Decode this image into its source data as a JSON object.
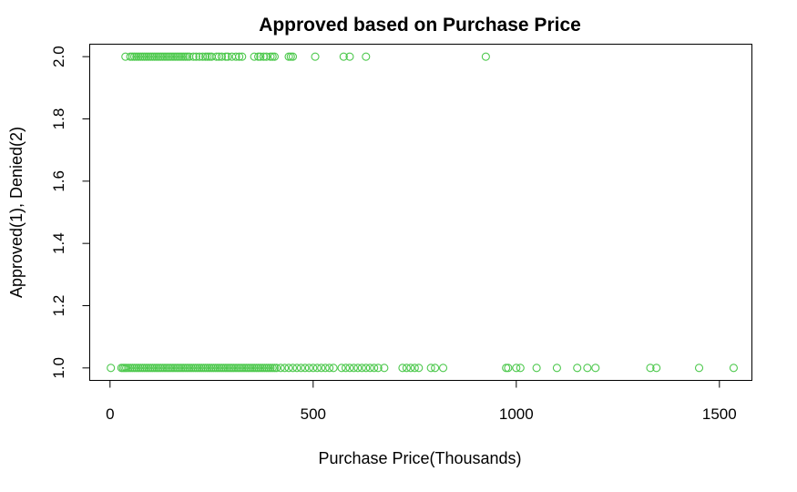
{
  "chart_data": {
    "type": "scatter",
    "title": "Approved based on Purchase Price",
    "xlabel": "Purchase Price(Thousands)",
    "ylabel": "Approved(1), Denied(2)",
    "xlim": [
      -50,
      1580
    ],
    "ylim": [
      0.96,
      2.04
    ],
    "x_ticks": [
      0,
      500,
      1000,
      1500
    ],
    "x_tick_labels": [
      "0",
      "500",
      "1000",
      "1500"
    ],
    "y_ticks": [
      1.0,
      1.2,
      1.4,
      1.6,
      1.8,
      2.0
    ],
    "y_tick_labels": [
      "1.0",
      "1.2",
      "1.4",
      "1.6",
      "1.8",
      "2.0"
    ],
    "grid": false,
    "point_color": "#4cc84c",
    "marker": "open-circle",
    "series": [
      {
        "values": [
          {
            "x": 2,
            "y": 1
          },
          {
            "x": 28,
            "y": 1
          },
          {
            "x": 32,
            "y": 1
          },
          {
            "x": 36,
            "y": 1
          },
          {
            "x": 40,
            "y": 1
          },
          {
            "x": 45,
            "y": 1
          },
          {
            "x": 50,
            "y": 1
          },
          {
            "x": 55,
            "y": 1
          },
          {
            "x": 60,
            "y": 1
          },
          {
            "x": 65,
            "y": 1
          },
          {
            "x": 70,
            "y": 1
          },
          {
            "x": 75,
            "y": 1
          },
          {
            "x": 80,
            "y": 1
          },
          {
            "x": 85,
            "y": 1
          },
          {
            "x": 90,
            "y": 1
          },
          {
            "x": 95,
            "y": 1
          },
          {
            "x": 100,
            "y": 1
          },
          {
            "x": 105,
            "y": 1
          },
          {
            "x": 110,
            "y": 1
          },
          {
            "x": 115,
            "y": 1
          },
          {
            "x": 120,
            "y": 1
          },
          {
            "x": 125,
            "y": 1
          },
          {
            "x": 130,
            "y": 1
          },
          {
            "x": 135,
            "y": 1
          },
          {
            "x": 140,
            "y": 1
          },
          {
            "x": 145,
            "y": 1
          },
          {
            "x": 150,
            "y": 1
          },
          {
            "x": 155,
            "y": 1
          },
          {
            "x": 160,
            "y": 1
          },
          {
            "x": 165,
            "y": 1
          },
          {
            "x": 170,
            "y": 1
          },
          {
            "x": 175,
            "y": 1
          },
          {
            "x": 180,
            "y": 1
          },
          {
            "x": 185,
            "y": 1
          },
          {
            "x": 190,
            "y": 1
          },
          {
            "x": 195,
            "y": 1
          },
          {
            "x": 200,
            "y": 1
          },
          {
            "x": 205,
            "y": 1
          },
          {
            "x": 210,
            "y": 1
          },
          {
            "x": 215,
            "y": 1
          },
          {
            "x": 220,
            "y": 1
          },
          {
            "x": 225,
            "y": 1
          },
          {
            "x": 230,
            "y": 1
          },
          {
            "x": 235,
            "y": 1
          },
          {
            "x": 240,
            "y": 1
          },
          {
            "x": 245,
            "y": 1
          },
          {
            "x": 250,
            "y": 1
          },
          {
            "x": 255,
            "y": 1
          },
          {
            "x": 260,
            "y": 1
          },
          {
            "x": 265,
            "y": 1
          },
          {
            "x": 270,
            "y": 1
          },
          {
            "x": 275,
            "y": 1
          },
          {
            "x": 280,
            "y": 1
          },
          {
            "x": 285,
            "y": 1
          },
          {
            "x": 290,
            "y": 1
          },
          {
            "x": 295,
            "y": 1
          },
          {
            "x": 300,
            "y": 1
          },
          {
            "x": 305,
            "y": 1
          },
          {
            "x": 310,
            "y": 1
          },
          {
            "x": 315,
            "y": 1
          },
          {
            "x": 320,
            "y": 1
          },
          {
            "x": 325,
            "y": 1
          },
          {
            "x": 330,
            "y": 1
          },
          {
            "x": 335,
            "y": 1
          },
          {
            "x": 340,
            "y": 1
          },
          {
            "x": 345,
            "y": 1
          },
          {
            "x": 350,
            "y": 1
          },
          {
            "x": 355,
            "y": 1
          },
          {
            "x": 360,
            "y": 1
          },
          {
            "x": 365,
            "y": 1
          },
          {
            "x": 370,
            "y": 1
          },
          {
            "x": 375,
            "y": 1
          },
          {
            "x": 380,
            "y": 1
          },
          {
            "x": 385,
            "y": 1
          },
          {
            "x": 390,
            "y": 1
          },
          {
            "x": 395,
            "y": 1
          },
          {
            "x": 400,
            "y": 1
          },
          {
            "x": 405,
            "y": 1
          },
          {
            "x": 410,
            "y": 1
          },
          {
            "x": 420,
            "y": 1
          },
          {
            "x": 430,
            "y": 1
          },
          {
            "x": 440,
            "y": 1
          },
          {
            "x": 450,
            "y": 1
          },
          {
            "x": 460,
            "y": 1
          },
          {
            "x": 470,
            "y": 1
          },
          {
            "x": 480,
            "y": 1
          },
          {
            "x": 490,
            "y": 1
          },
          {
            "x": 500,
            "y": 1
          },
          {
            "x": 510,
            "y": 1
          },
          {
            "x": 520,
            "y": 1
          },
          {
            "x": 530,
            "y": 1
          },
          {
            "x": 540,
            "y": 1
          },
          {
            "x": 550,
            "y": 1
          },
          {
            "x": 570,
            "y": 1
          },
          {
            "x": 580,
            "y": 1
          },
          {
            "x": 590,
            "y": 1
          },
          {
            "x": 600,
            "y": 1
          },
          {
            "x": 610,
            "y": 1
          },
          {
            "x": 620,
            "y": 1
          },
          {
            "x": 630,
            "y": 1
          },
          {
            "x": 640,
            "y": 1
          },
          {
            "x": 650,
            "y": 1
          },
          {
            "x": 660,
            "y": 1
          },
          {
            "x": 675,
            "y": 1
          },
          {
            "x": 720,
            "y": 1
          },
          {
            "x": 730,
            "y": 1
          },
          {
            "x": 740,
            "y": 1
          },
          {
            "x": 750,
            "y": 1
          },
          {
            "x": 760,
            "y": 1
          },
          {
            "x": 790,
            "y": 1
          },
          {
            "x": 800,
            "y": 1
          },
          {
            "x": 820,
            "y": 1
          },
          {
            "x": 975,
            "y": 1
          },
          {
            "x": 980,
            "y": 1
          },
          {
            "x": 1000,
            "y": 1
          },
          {
            "x": 1010,
            "y": 1
          },
          {
            "x": 1050,
            "y": 1
          },
          {
            "x": 1100,
            "y": 1
          },
          {
            "x": 1150,
            "y": 1
          },
          {
            "x": 1175,
            "y": 1
          },
          {
            "x": 1195,
            "y": 1
          },
          {
            "x": 1330,
            "y": 1
          },
          {
            "x": 1345,
            "y": 1
          },
          {
            "x": 1450,
            "y": 1
          },
          {
            "x": 1535,
            "y": 1
          },
          {
            "x": 38,
            "y": 2
          },
          {
            "x": 50,
            "y": 2
          },
          {
            "x": 55,
            "y": 2
          },
          {
            "x": 60,
            "y": 2
          },
          {
            "x": 65,
            "y": 2
          },
          {
            "x": 70,
            "y": 2
          },
          {
            "x": 75,
            "y": 2
          },
          {
            "x": 80,
            "y": 2
          },
          {
            "x": 85,
            "y": 2
          },
          {
            "x": 90,
            "y": 2
          },
          {
            "x": 95,
            "y": 2
          },
          {
            "x": 100,
            "y": 2
          },
          {
            "x": 105,
            "y": 2
          },
          {
            "x": 110,
            "y": 2
          },
          {
            "x": 115,
            "y": 2
          },
          {
            "x": 120,
            "y": 2
          },
          {
            "x": 125,
            "y": 2
          },
          {
            "x": 130,
            "y": 2
          },
          {
            "x": 135,
            "y": 2
          },
          {
            "x": 140,
            "y": 2
          },
          {
            "x": 145,
            "y": 2
          },
          {
            "x": 150,
            "y": 2
          },
          {
            "x": 155,
            "y": 2
          },
          {
            "x": 160,
            "y": 2
          },
          {
            "x": 165,
            "y": 2
          },
          {
            "x": 170,
            "y": 2
          },
          {
            "x": 175,
            "y": 2
          },
          {
            "x": 180,
            "y": 2
          },
          {
            "x": 185,
            "y": 2
          },
          {
            "x": 190,
            "y": 2
          },
          {
            "x": 195,
            "y": 2
          },
          {
            "x": 205,
            "y": 2
          },
          {
            "x": 212,
            "y": 2
          },
          {
            "x": 220,
            "y": 2
          },
          {
            "x": 228,
            "y": 2
          },
          {
            "x": 235,
            "y": 2
          },
          {
            "x": 240,
            "y": 2
          },
          {
            "x": 245,
            "y": 2
          },
          {
            "x": 250,
            "y": 2
          },
          {
            "x": 262,
            "y": 2
          },
          {
            "x": 268,
            "y": 2
          },
          {
            "x": 275,
            "y": 2
          },
          {
            "x": 285,
            "y": 2
          },
          {
            "x": 290,
            "y": 2
          },
          {
            "x": 300,
            "y": 2
          },
          {
            "x": 310,
            "y": 2
          },
          {
            "x": 318,
            "y": 2
          },
          {
            "x": 325,
            "y": 2
          },
          {
            "x": 355,
            "y": 2
          },
          {
            "x": 365,
            "y": 2
          },
          {
            "x": 370,
            "y": 2
          },
          {
            "x": 378,
            "y": 2
          },
          {
            "x": 385,
            "y": 2
          },
          {
            "x": 395,
            "y": 2
          },
          {
            "x": 400,
            "y": 2
          },
          {
            "x": 405,
            "y": 2
          },
          {
            "x": 440,
            "y": 2
          },
          {
            "x": 445,
            "y": 2
          },
          {
            "x": 450,
            "y": 2
          },
          {
            "x": 505,
            "y": 2
          },
          {
            "x": 575,
            "y": 2
          },
          {
            "x": 590,
            "y": 2
          },
          {
            "x": 630,
            "y": 2
          },
          {
            "x": 925,
            "y": 2
          }
        ]
      }
    ]
  }
}
